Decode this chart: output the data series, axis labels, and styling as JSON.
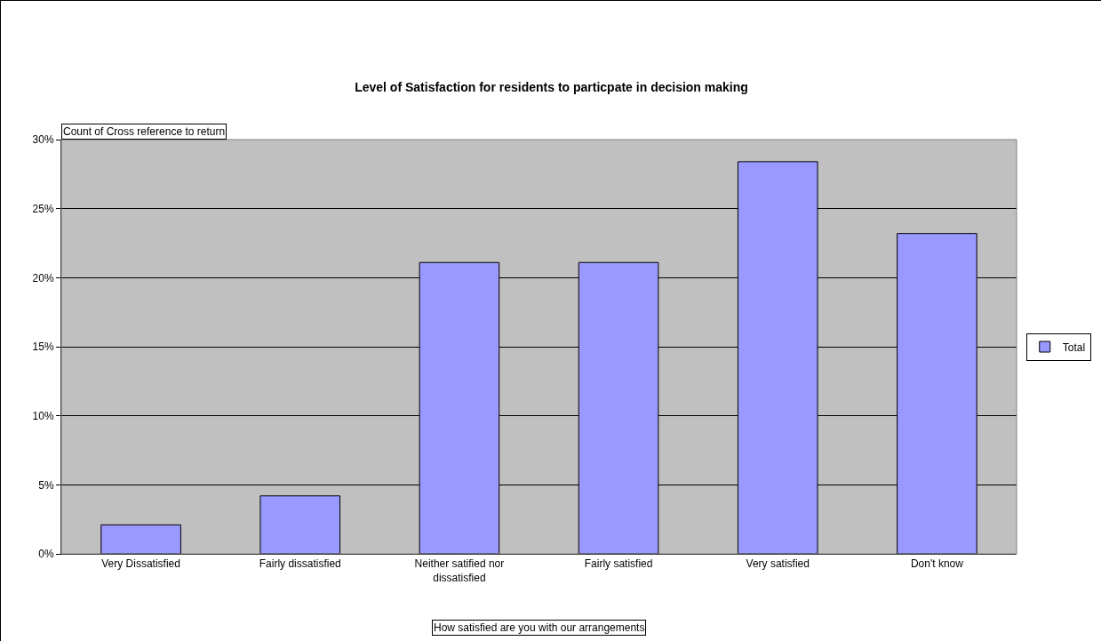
{
  "chart_data": {
    "type": "bar",
    "title": "Level of Satisfaction for residents to particpate in decision making",
    "xlabel": "How satisfied are you with our arrangements",
    "ylabel": "Count of Cross reference to return",
    "categories": [
      "Very Dissatisfied",
      "Fairly dissatisfied",
      "Neither satified nor dissatisfied",
      "Fairly satisfied",
      "Very satisfied",
      "Don't know"
    ],
    "series": [
      {
        "name": "Total",
        "color": "#9999ff",
        "values": [
          2.1,
          4.2,
          21.1,
          21.1,
          28.4,
          23.2
        ]
      }
    ],
    "ylim": [
      0,
      30
    ],
    "yticks": [
      {
        "value": 0,
        "label": "0%"
      },
      {
        "value": 5,
        "label": "5%"
      },
      {
        "value": 10,
        "label": "10%"
      },
      {
        "value": 15,
        "label": "15%"
      },
      {
        "value": 20,
        "label": "20%"
      },
      {
        "value": 25,
        "label": "25%"
      },
      {
        "value": 30,
        "label": "30%"
      }
    ],
    "grid": "y",
    "legend": "right"
  }
}
